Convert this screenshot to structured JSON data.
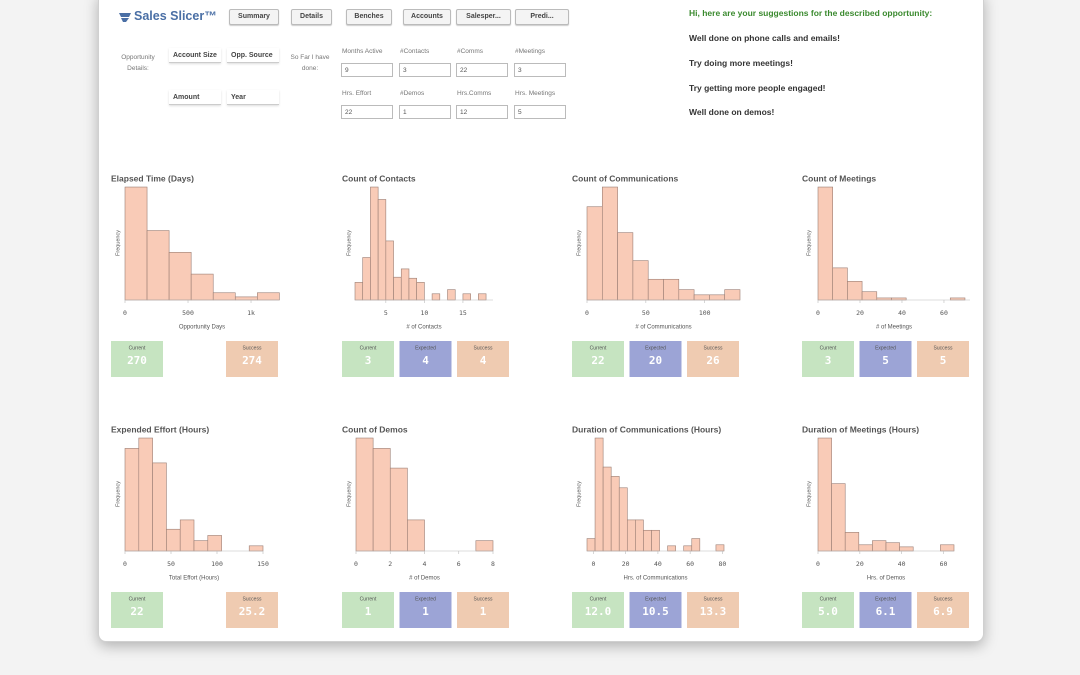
{
  "header": {
    "logo": "Sales Slicer™",
    "tabs": [
      "Summary",
      "Details",
      "Benches",
      "Accounts",
      "Salesper...",
      "Predi..."
    ]
  },
  "opportunity": {
    "label": "Opportunity Details:",
    "fields": [
      "Account Size",
      "Opp. Source",
      "Amount",
      "Year"
    ]
  },
  "progress": {
    "label": "So Far I have done:",
    "fields": [
      {
        "label": "Months Active",
        "value": 9
      },
      {
        "label": "#Contacts",
        "value": 3
      },
      {
        "label": "#Comms",
        "value": 22
      },
      {
        "label": "#Meetings",
        "value": 3
      },
      {
        "label": "Hrs. Effort",
        "value": 22
      },
      {
        "label": "#Demos",
        "value": 1
      },
      {
        "label": "Hrs.Comms",
        "value": 12
      },
      {
        "label": "Hrs. Meetings",
        "value": 5
      }
    ]
  },
  "suggestions": {
    "heading": "Hi, here are your suggestions for the described opportunity:",
    "items": [
      "Well done on phone calls and emails!",
      "Try doing more meetings!",
      "Try getting more people engaged!",
      "Well done on demos!"
    ]
  },
  "chart_data": [
    {
      "type": "histogram",
      "title": "Elapsed Time (Days)",
      "xlabel": "Opportunity Days",
      "ylabel": "Frequency",
      "color": "#f9cbb7",
      "bins": [
        0,
        175,
        350,
        525,
        700,
        875,
        1050,
        1225
      ],
      "values": [
        109,
        67,
        46,
        25,
        7,
        3,
        7
      ],
      "xlim": [
        0,
        1222
      ],
      "ylim": [
        0,
        110
      ],
      "xticks": [
        0,
        500,
        {
          "value": 1000,
          "label": "1k"
        }
      ],
      "kpis": [
        {
          "label": "Current",
          "value": "270",
          "color": "#c6e4c1"
        },
        {
          "label": "Success",
          "value": "274",
          "color": "#efcbb1"
        }
      ]
    },
    {
      "type": "histogram",
      "title": "Count of Contacts",
      "xlabel": "# of Contacts",
      "ylabel": "Frequency",
      "color": "#f9cbb7",
      "bins": [
        1,
        2,
        3,
        4,
        5,
        6,
        7,
        8,
        9,
        10,
        11,
        12,
        13,
        14,
        15,
        16,
        17,
        18
      ],
      "values": [
        17,
        41,
        109,
        97,
        57,
        22,
        30,
        21,
        17,
        0,
        6,
        0,
        10,
        0,
        6,
        0,
        6
      ],
      "xlim": [
        1,
        18.9
      ],
      "ylim": [
        0,
        110
      ],
      "xticks": [
        5,
        10,
        15
      ],
      "kpis": [
        {
          "label": "Current",
          "value": "3",
          "color": "#c6e4c1"
        },
        {
          "label": "Expected",
          "value": "4",
          "color": "#9ca4d6"
        },
        {
          "label": "Success",
          "value": "4",
          "color": "#efcbb1"
        }
      ]
    },
    {
      "type": "histogram",
      "title": "Count of Communications",
      "xlabel": "# of Communications",
      "ylabel": "Frequency",
      "color": "#f9cbb7",
      "bins": [
        0,
        13,
        26,
        39,
        52,
        65,
        78,
        91,
        104,
        117,
        130
      ],
      "values": [
        90,
        109,
        65,
        38,
        20,
        20,
        10,
        5,
        5,
        10
      ],
      "xlim": [
        0,
        130
      ],
      "ylim": [
        0,
        110
      ],
      "xticks": [
        0,
        50,
        100
      ],
      "kpis": [
        {
          "label": "Current",
          "value": "22",
          "color": "#c6e4c1"
        },
        {
          "label": "Expected",
          "value": "20",
          "color": "#9ca4d6"
        },
        {
          "label": "Success",
          "value": "26",
          "color": "#efcbb1"
        }
      ]
    },
    {
      "type": "histogram",
      "title": "Count of Meetings",
      "xlabel": "# of Meetings",
      "ylabel": "Frequency",
      "color": "#f9cbb7",
      "bins": [
        0,
        7,
        14,
        21,
        28,
        35,
        42,
        49,
        56,
        63,
        70
      ],
      "values": [
        109,
        31,
        18,
        8,
        2,
        2,
        0,
        0,
        0,
        2
      ],
      "xlim": [
        0,
        72.4
      ],
      "ylim": [
        0,
        110
      ],
      "xticks": [
        0,
        20,
        40,
        60
      ],
      "kpis": [
        {
          "label": "Current",
          "value": "3",
          "color": "#c6e4c1"
        },
        {
          "label": "Expected",
          "value": "5",
          "color": "#9ca4d6"
        },
        {
          "label": "Success",
          "value": "5",
          "color": "#efcbb1"
        }
      ]
    },
    {
      "type": "histogram",
      "title": "Expended Effort (Hours)",
      "xlabel": "Total Effort (Hours)",
      "ylabel": "Frequency",
      "color": "#f9cbb7",
      "bins": [
        0,
        15,
        30,
        45,
        60,
        75,
        90,
        105,
        120,
        135,
        150
      ],
      "values": [
        99,
        109,
        85,
        21,
        30,
        10,
        15,
        0,
        0,
        5
      ],
      "xlim": [
        0,
        150
      ],
      "ylim": [
        0,
        110
      ],
      "xticks": [
        0,
        50,
        100,
        150
      ],
      "kpis": [
        {
          "label": "Current",
          "value": "22",
          "color": "#c6e4c1"
        },
        {
          "label": "Success",
          "value": "25.2",
          "color": "#efcbb1"
        }
      ]
    },
    {
      "type": "histogram",
      "title": "Count of Demos",
      "xlabel": "# of Demos",
      "ylabel": "Frequency",
      "color": "#f9cbb7",
      "bins": [
        0,
        1,
        2,
        3,
        4,
        5,
        6,
        7,
        8
      ],
      "values": [
        109,
        99,
        80,
        30,
        0,
        0,
        0,
        10
      ],
      "xlim": [
        0,
        8
      ],
      "ylim": [
        0,
        110
      ],
      "xticks": [
        0,
        2,
        4,
        6,
        8
      ],
      "kpis": [
        {
          "label": "Current",
          "value": "1",
          "color": "#c6e4c1"
        },
        {
          "label": "Expected",
          "value": "1",
          "color": "#9ca4d6"
        },
        {
          "label": "Success",
          "value": "1",
          "color": "#efcbb1"
        }
      ]
    },
    {
      "type": "histogram",
      "title": "Duration of Communications (Hours)",
      "xlabel": "Hrs. of Communications",
      "ylabel": "Frequency",
      "color": "#f9cbb7",
      "bins": [
        -4,
        1,
        6,
        11,
        16,
        21,
        26,
        31,
        36,
        41,
        46,
        51,
        56,
        61,
        66,
        71,
        76,
        81
      ],
      "values": [
        12,
        109,
        81,
        72,
        61,
        30,
        30,
        20,
        20,
        0,
        5,
        0,
        5,
        12,
        0,
        0,
        6
      ],
      "xlim": [
        -4,
        81
      ],
      "ylim": [
        0,
        110
      ],
      "xticks": [
        0,
        20,
        40,
        60,
        80
      ],
      "kpis": [
        {
          "label": "Current",
          "value": "12.0",
          "color": "#c6e4c1"
        },
        {
          "label": "Expected",
          "value": "10.5",
          "color": "#9ca4d6"
        },
        {
          "label": "Success",
          "value": "13.3",
          "color": "#efcbb1"
        }
      ]
    },
    {
      "type": "histogram",
      "title": "Duration of Meetings (Hours)",
      "xlabel": "Hrs. of Demos",
      "ylabel": "Frequency",
      "color": "#f9cbb7",
      "bins": [
        0,
        6.5,
        13,
        19.5,
        26,
        32.5,
        39,
        45.5,
        52,
        58.5,
        65
      ],
      "values": [
        109,
        65,
        18,
        6,
        10,
        8,
        4,
        0,
        0,
        6
      ],
      "xlim": [
        0,
        65
      ],
      "ylim": [
        0,
        110
      ],
      "xticks": [
        0,
        20,
        40,
        60
      ],
      "kpis": [
        {
          "label": "Current",
          "value": "5.0",
          "color": "#c6e4c1"
        },
        {
          "label": "Expected",
          "value": "6.1",
          "color": "#9ca4d6"
        },
        {
          "label": "Success",
          "value": "6.9",
          "color": "#efcbb1"
        }
      ]
    }
  ]
}
